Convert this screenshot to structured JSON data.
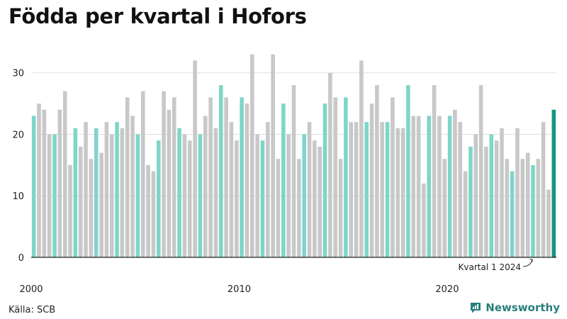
{
  "header": {
    "title": "Födda per kvartal i Hofors"
  },
  "footer": {
    "source": "Källa: SCB",
    "brand": "Newsworthy",
    "brand_icon": "newsworthy-logo-icon"
  },
  "colors": {
    "q1": "#7fd5c9",
    "other": "#c8c8c8",
    "latest": "#1a9480",
    "grid": "#dedede",
    "axis": "#222222"
  },
  "chart_data": {
    "type": "bar",
    "title": "Födda per kvartal i Hofors",
    "xlabel": "",
    "ylabel": "",
    "ylim": [
      0,
      34
    ],
    "yticks": [
      0,
      10,
      20,
      30
    ],
    "grid": true,
    "start": {
      "year": 2000,
      "quarter": 1
    },
    "x_tick_labels": [
      "2000",
      "2010",
      "2020"
    ],
    "values": [
      23,
      25,
      24,
      20,
      20,
      24,
      27,
      15,
      21,
      18,
      22,
      16,
      21,
      17,
      22,
      20,
      22,
      21,
      26,
      23,
      20,
      27,
      15,
      14,
      19,
      27,
      24,
      26,
      21,
      20,
      19,
      32,
      20,
      23,
      26,
      21,
      28,
      26,
      22,
      19,
      26,
      25,
      33,
      20,
      19,
      22,
      33,
      16,
      25,
      20,
      28,
      16,
      20,
      22,
      19,
      18,
      25,
      30,
      26,
      16,
      26,
      22,
      22,
      32,
      22,
      25,
      28,
      22,
      22,
      26,
      21,
      21,
      28,
      23,
      23,
      12,
      23,
      28,
      23,
      16,
      23,
      24,
      22,
      14,
      18,
      20,
      28,
      18,
      20,
      19,
      21,
      16,
      14,
      21,
      16,
      17,
      15,
      16,
      22,
      11,
      24
    ],
    "annotation": {
      "text": "Kvartal 1 2024",
      "target": "latest"
    }
  }
}
